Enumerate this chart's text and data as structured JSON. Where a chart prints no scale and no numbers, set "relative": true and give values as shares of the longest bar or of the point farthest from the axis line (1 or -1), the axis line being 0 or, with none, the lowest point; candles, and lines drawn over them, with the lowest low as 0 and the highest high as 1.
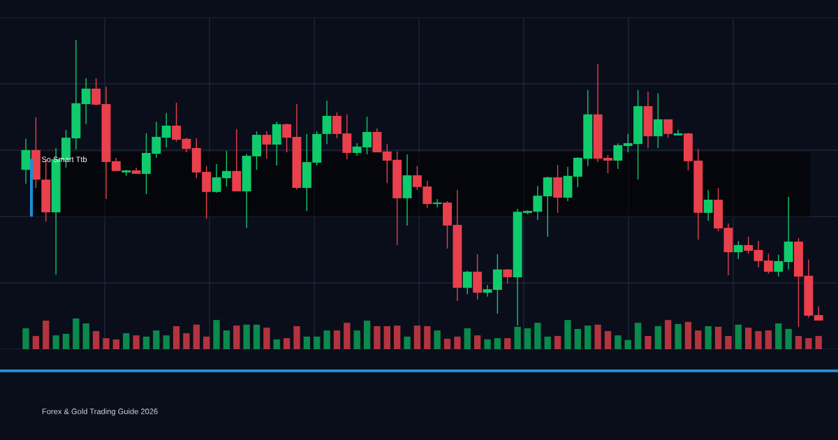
{
  "chart_data": [
    {
      "type": "candlestick",
      "relative": true,
      "grid": true,
      "categories": [
        null,
        null,
        null,
        null,
        null,
        null,
        null,
        null,
        null,
        null,
        null,
        null,
        null,
        null,
        null,
        null,
        null,
        null,
        null,
        null,
        null,
        null,
        null,
        null,
        null,
        null,
        null,
        null,
        null,
        null,
        null,
        null,
        null,
        null,
        null,
        null,
        null,
        null,
        null,
        null,
        null,
        null,
        null,
        null,
        null,
        null,
        null,
        null,
        null,
        null,
        null,
        null,
        null,
        null,
        null,
        null,
        null,
        null,
        null,
        null,
        null,
        null,
        null,
        null,
        null,
        null,
        null,
        null,
        null,
        null,
        null,
        null,
        null,
        null,
        null,
        null,
        null,
        null,
        null,
        null
      ],
      "ohlc": [
        [
          0.547,
          0.655,
          0.499,
          0.616
        ],
        [
          0.616,
          0.73,
          0.484,
          0.513
        ],
        [
          0.513,
          0.582,
          0.367,
          0.399
        ],
        [
          0.399,
          0.623,
          0.182,
          0.584
        ],
        [
          0.582,
          0.686,
          0.555,
          0.659
        ],
        [
          0.657,
          1,
          0.618,
          0.779
        ],
        [
          0.776,
          0.866,
          0.706,
          0.83
        ],
        [
          0.83,
          0.866,
          0.771,
          0.774
        ],
        [
          0.776,
          0.837,
          0.445,
          0.574
        ],
        [
          0.577,
          0.589,
          0.543,
          0.543
        ],
        [
          0.538,
          0.547,
          0.526,
          0.545
        ],
        [
          0.545,
          0.555,
          0.533,
          0.533
        ],
        [
          0.533,
          0.674,
          0.462,
          0.606
        ],
        [
          0.603,
          0.715,
          0.589,
          0.662
        ],
        [
          0.659,
          0.745,
          0.625,
          0.701
        ],
        [
          0.701,
          0.781,
          0.645,
          0.652
        ],
        [
          0.655,
          0.659,
          0.608,
          0.62
        ],
        [
          0.623,
          0.657,
          0.518,
          0.538
        ],
        [
          0.54,
          0.56,
          0.377,
          0.47
        ],
        [
          0.47,
          0.567,
          0.467,
          0.521
        ],
        [
          0.518,
          0.613,
          0.489,
          0.543
        ],
        [
          0.543,
          0.689,
          0.472,
          0.472
        ],
        [
          0.472,
          0.603,
          0.345,
          0.596
        ],
        [
          0.594,
          0.681,
          0.547,
          0.669
        ],
        [
          0.669,
          0.681,
          0.586,
          0.635
        ],
        [
          0.635,
          0.715,
          0.562,
          0.706
        ],
        [
          0.706,
          0.708,
          0.608,
          0.659
        ],
        [
          0.662,
          0.776,
          0.479,
          0.484
        ],
        [
          0.484,
          0.672,
          0.404,
          0.574
        ],
        [
          0.572,
          0.681,
          0.562,
          0.672
        ],
        [
          0.672,
          0.788,
          0.637,
          0.735
        ],
        [
          0.735,
          0.747,
          0.657,
          0.672
        ],
        [
          0.674,
          0.74,
          0.584,
          0.606
        ],
        [
          0.606,
          0.64,
          0.596,
          0.628
        ],
        [
          0.625,
          0.732,
          0.601,
          0.679
        ],
        [
          0.679,
          0.691,
          0.608,
          0.608
        ],
        [
          0.611,
          0.637,
          0.501,
          0.579
        ],
        [
          0.582,
          0.611,
          0.285,
          0.448
        ],
        [
          0.448,
          0.601,
          0.353,
          0.528
        ],
        [
          0.528,
          0.56,
          0.477,
          0.487
        ],
        [
          0.489,
          0.509,
          0.414,
          0.428
        ],
        [
          0.428,
          0.445,
          0.416,
          0.433
        ],
        [
          0.433,
          0.438,
          0.273,
          0.353
        ],
        [
          0.355,
          0.477,
          0.09,
          0.136
        ],
        [
          0.136,
          0.195,
          0.114,
          0.192
        ],
        [
          0.192,
          0.253,
          0.095,
          0.119
        ],
        [
          0.119,
          0.146,
          0.105,
          0.131
        ],
        [
          0.129,
          0.253,
          0.046,
          0.2
        ],
        [
          0.2,
          0.202,
          0.151,
          0.173
        ],
        [
          0.173,
          0.411,
          0.005,
          0.401
        ],
        [
          0.397,
          0.406,
          0.392,
          0.404
        ],
        [
          0.401,
          0.491,
          0.372,
          0.457
        ],
        [
          0.455,
          0.523,
          0.314,
          0.521
        ],
        [
          0.521,
          0.564,
          0.397,
          0.45
        ],
        [
          0.45,
          0.557,
          0.438,
          0.526
        ],
        [
          0.523,
          0.591,
          0.487,
          0.589
        ],
        [
          0.586,
          0.825,
          0.56,
          0.74
        ],
        [
          0.74,
          0.915,
          0.574,
          0.586
        ],
        [
          0.589,
          0.599,
          0.535,
          0.579
        ],
        [
          0.579,
          0.64,
          0.55,
          0.633
        ],
        [
          0.63,
          0.672,
          0.608,
          0.64
        ],
        [
          0.637,
          0.825,
          0.513,
          0.769
        ],
        [
          0.769,
          0.82,
          0.623,
          0.664
        ],
        [
          0.664,
          0.813,
          0.623,
          0.723
        ],
        [
          0.723,
          0.723,
          0.659,
          0.672
        ],
        [
          0.667,
          0.686,
          0.667,
          0.674
        ],
        [
          0.674,
          0.676,
          0.545,
          0.577
        ],
        [
          0.579,
          0.62,
          0.304,
          0.397
        ],
        [
          0.397,
          0.477,
          0.37,
          0.443
        ],
        [
          0.443,
          0.484,
          0.333,
          0.343
        ],
        [
          0.345,
          0.36,
          0.18,
          0.26
        ],
        [
          0.26,
          0.299,
          0.236,
          0.285
        ],
        [
          0.285,
          0.314,
          0.255,
          0.265
        ],
        [
          0.268,
          0.299,
          0.207,
          0.229
        ],
        [
          0.231,
          0.255,
          0.185,
          0.192
        ],
        [
          0.192,
          0.251,
          0.175,
          0.229
        ],
        [
          0.226,
          0.453,
          0.2,
          0.297
        ],
        [
          0.297,
          0.309,
          0,
          0.175
        ],
        [
          0.178,
          0.234,
          0.032,
          0.039
        ],
        [
          0.041,
          0.071,
          0.022,
          0.022
        ]
      ],
      "colors": [
        "#0fcb6c",
        "#e8404c",
        "#e8404c",
        "#0fcb6c",
        "#0fcb6c",
        "#0fcb6c",
        "#0fcb6c",
        "#e8404c",
        "#e8404c",
        "#e8404c",
        "#0fcb6c",
        "#e8404c",
        "#0fcb6c",
        "#0fcb6c",
        "#0fcb6c",
        "#e8404c",
        "#e8404c",
        "#e8404c",
        "#e8404c",
        "#0fcb6c",
        "#0fcb6c",
        "#e8404c",
        "#0fcb6c",
        "#0fcb6c",
        "#e8404c",
        "#0fcb6c",
        "#e8404c",
        "#e8404c",
        "#0fcb6c",
        "#0fcb6c",
        "#0fcb6c",
        "#e8404c",
        "#e8404c",
        "#0fcb6c",
        "#0fcb6c",
        "#e8404c",
        "#e8404c",
        "#e8404c",
        "#0fcb6c",
        "#e8404c",
        "#e8404c",
        "#0fcb6c",
        "#e8404c",
        "#e8404c",
        "#0fcb6c",
        "#e8404c",
        "#0fcb6c",
        "#0fcb6c",
        "#e8404c",
        "#0fcb6c",
        "#0fcb6c",
        "#0fcb6c",
        "#0fcb6c",
        "#e8404c",
        "#0fcb6c",
        "#0fcb6c",
        "#0fcb6c",
        "#e8404c",
        "#e8404c",
        "#0fcb6c",
        "#0fcb6c",
        "#0fcb6c",
        "#e8404c",
        "#0fcb6c",
        "#e8404c",
        "#0fcb6c",
        "#e8404c",
        "#e8404c",
        "#0fcb6c",
        "#e8404c",
        "#e8404c",
        "#0fcb6c",
        "#e8404c",
        "#e8404c",
        "#e8404c",
        "#0fcb6c",
        "#0fcb6c",
        "#e8404c",
        "#e8404c",
        "#e8404c"
      ],
      "bands": [
        {
          "axis": "y",
          "from": 0.384,
          "to": 0.608,
          "label": "So Smart Ttb",
          "color": "#000000"
        }
      ],
      "annotations": [
        "Forex & Gold Trading Guide 2026"
      ]
    },
    {
      "type": "bar",
      "relative": true,
      "grid": true,
      "categories": [
        null,
        null,
        null,
        null,
        null,
        null,
        null,
        null,
        null,
        null,
        null,
        null,
        null,
        null,
        null,
        null,
        null,
        null,
        null,
        null,
        null,
        null,
        null,
        null,
        null,
        null,
        null,
        null,
        null,
        null,
        null,
        null,
        null,
        null,
        null,
        null,
        null,
        null,
        null,
        null,
        null,
        null,
        null,
        null,
        null,
        null,
        null,
        null,
        null,
        null,
        null,
        null,
        null,
        null,
        null,
        null,
        null,
        null,
        null,
        null,
        null,
        null,
        null,
        null,
        null,
        null,
        null,
        null,
        null,
        null,
        null,
        null,
        null,
        null,
        null,
        null,
        null,
        null,
        null,
        null
      ],
      "values": [
        0.68,
        0.43,
        0.93,
        0.45,
        0.5,
        1,
        0.84,
        0.59,
        0.36,
        0.32,
        0.52,
        0.45,
        0.41,
        0.61,
        0.45,
        0.75,
        0.52,
        0.8,
        0.41,
        0.95,
        0.61,
        0.77,
        0.8,
        0.8,
        0.7,
        0.32,
        0.36,
        0.75,
        0.41,
        0.41,
        0.61,
        0.61,
        0.86,
        0.61,
        0.93,
        0.75,
        0.75,
        0.77,
        0.41,
        0.77,
        0.75,
        0.61,
        0.34,
        0.41,
        0.68,
        0.45,
        0.32,
        0.36,
        0.36,
        0.73,
        0.68,
        0.86,
        0.41,
        0.43,
        0.95,
        0.66,
        0.77,
        0.8,
        0.59,
        0.45,
        0.3,
        0.86,
        0.43,
        0.75,
        0.95,
        0.82,
        0.89,
        0.61,
        0.75,
        0.73,
        0.43,
        0.8,
        0.7,
        0.59,
        0.61,
        0.84,
        0.66,
        0.43,
        0.36,
        0.43
      ],
      "colors": [
        "#0a8a4c",
        "#b3343e",
        "#b3343e",
        "#0a8a4c",
        "#0a8a4c",
        "#0a8a4c",
        "#0a8a4c",
        "#b3343e",
        "#b3343e",
        "#b3343e",
        "#0a8a4c",
        "#b3343e",
        "#0a8a4c",
        "#0a8a4c",
        "#0a8a4c",
        "#b3343e",
        "#b3343e",
        "#b3343e",
        "#b3343e",
        "#0a8a4c",
        "#0a8a4c",
        "#b3343e",
        "#0a8a4c",
        "#0a8a4c",
        "#b3343e",
        "#0a8a4c",
        "#b3343e",
        "#b3343e",
        "#0a8a4c",
        "#0a8a4c",
        "#0a8a4c",
        "#b3343e",
        "#b3343e",
        "#0a8a4c",
        "#0a8a4c",
        "#b3343e",
        "#b3343e",
        "#b3343e",
        "#0a8a4c",
        "#b3343e",
        "#b3343e",
        "#0a8a4c",
        "#b3343e",
        "#b3343e",
        "#0a8a4c",
        "#b3343e",
        "#0a8a4c",
        "#0a8a4c",
        "#b3343e",
        "#0a8a4c",
        "#0a8a4c",
        "#0a8a4c",
        "#0a8a4c",
        "#b3343e",
        "#0a8a4c",
        "#0a8a4c",
        "#0a8a4c",
        "#b3343e",
        "#b3343e",
        "#0a8a4c",
        "#0a8a4c",
        "#0a8a4c",
        "#b3343e",
        "#0a8a4c",
        "#b3343e",
        "#0a8a4c",
        "#b3343e",
        "#b3343e",
        "#0a8a4c",
        "#b3343e",
        "#b3343e",
        "#0a8a4c",
        "#b3343e",
        "#b3343e",
        "#b3343e",
        "#0a8a4c",
        "#0a8a4c",
        "#b3343e",
        "#b3343e",
        "#b3343e"
      ]
    }
  ]
}
